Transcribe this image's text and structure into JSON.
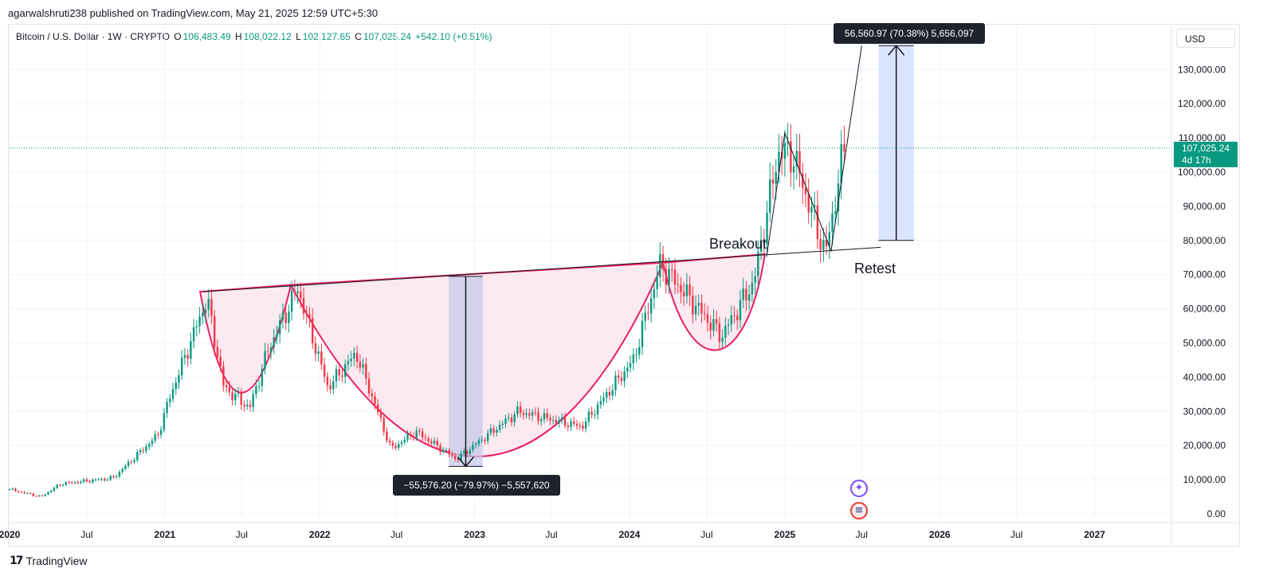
{
  "publisher": "agarwalshruti238 published on TradingView.com, May 21, 2025 12:59 UTC+5:30",
  "symbol_info": {
    "title": "Bitcoin / U.S. Dollar · 1W · CRYPTO",
    "o_label": "O",
    "o_value": "106,483.49",
    "h_label": "H",
    "h_value": "108,022.12",
    "l_label": "L",
    "l_value": "102,127.65",
    "c_label": "C",
    "c_value": "107,025.24",
    "change": "+542.10 (+0.51%)"
  },
  "currency_button": "USD",
  "price_badge": {
    "price": "107,025.24",
    "countdown": "4d 17h"
  },
  "brand": "TradingView",
  "colors": {
    "up": "#089981",
    "down": "#f23645",
    "cup_line": "#e91e63",
    "cup_fill": "#fce4ec",
    "measure_fill": "#c5cae9",
    "target_fill": "#dbe4ff",
    "label_bg": "#1e222d"
  },
  "icons": [
    "tradingview-logo-icon",
    "ai-spark-icon",
    "us-flag-icon"
  ],
  "chart_data": {
    "type": "candlestick",
    "title": "Bitcoin / U.S. Dollar",
    "interval": "1W",
    "ylim": [
      0,
      140000
    ],
    "y_ticks": [
      "0.00",
      "10,000.00",
      "20,000.00",
      "30,000.00",
      "40,000.00",
      "50,000.00",
      "60,000.00",
      "70,000.00",
      "80,000.00",
      "90,000.00",
      "100,000.00",
      "110,000.00",
      "120,000.00",
      "130,000.00"
    ],
    "x_ticks": [
      "2020",
      "Jul",
      "2021",
      "Jul",
      "2022",
      "Jul",
      "2023",
      "Jul",
      "2024",
      "Jul",
      "2025",
      "Jul",
      "2026",
      "Jul",
      "2027"
    ],
    "x_range": [
      "2020-01-01",
      "2027-07-01"
    ],
    "grid": true,
    "last_price": 107025.24,
    "price_path": [
      [
        "2020-01-01",
        7200
      ],
      [
        "2020-03-15",
        5000
      ],
      [
        "2020-05-01",
        8800
      ],
      [
        "2020-09-01",
        10500
      ],
      [
        "2020-12-15",
        23000
      ],
      [
        "2021-01-15",
        35000
      ],
      [
        "2021-04-10",
        63000
      ],
      [
        "2021-05-20",
        37000
      ],
      [
        "2021-07-20",
        31000
      ],
      [
        "2021-09-01",
        48000
      ],
      [
        "2021-11-10",
        66000
      ],
      [
        "2022-01-20",
        37000
      ],
      [
        "2022-03-28",
        47000
      ],
      [
        "2022-06-18",
        19000
      ],
      [
        "2022-08-15",
        24000
      ],
      [
        "2022-11-20",
        16000
      ],
      [
        "2023-01-20",
        22000
      ],
      [
        "2023-04-14",
        30000
      ],
      [
        "2023-09-10",
        25500
      ],
      [
        "2024-01-10",
        45000
      ],
      [
        "2024-03-14",
        73000
      ],
      [
        "2024-08-05",
        52000
      ],
      [
        "2024-10-20",
        68000
      ],
      [
        "2024-12-17",
        106000
      ],
      [
        "2025-01-20",
        105000
      ],
      [
        "2025-04-07",
        76000
      ],
      [
        "2025-05-21",
        107025
      ]
    ],
    "annotations": [
      {
        "text": "Breakout"
      },
      {
        "text": "Retest"
      },
      {
        "text": "−55,576.20 (−79.97%) −5,557,620"
      },
      {
        "text": "56,560.97 (70.38%) 5,656,097"
      }
    ],
    "neckline": [
      [
        "2021-04-01",
        65000
      ],
      [
        "2025-08-15",
        78000
      ]
    ],
    "projection_path": [
      [
        "2024-11-20",
        76000
      ],
      [
        "2025-01-01",
        111500
      ],
      [
        "2025-04-20",
        77000
      ],
      [
        "2025-07-01",
        137000
      ]
    ],
    "drop_measure": {
      "from": 69500,
      "to": 13900,
      "start": "2022-11-01",
      "end": "2023-01-20"
    },
    "target_measure": {
      "from": 80000,
      "to": 137000,
      "start": "2025-08-10",
      "end": "2025-11-01"
    }
  }
}
